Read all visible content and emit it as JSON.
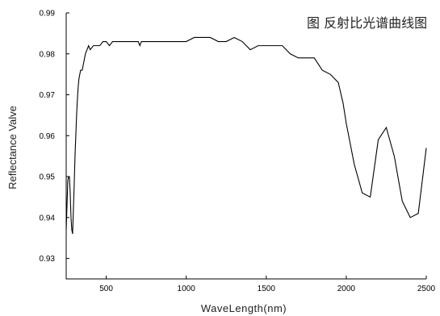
{
  "chart_data": {
    "type": "line",
    "title": "图 反射比光谱曲线图",
    "xlabel": "WaveLength(nm)",
    "ylabel": "Reflectance Valve",
    "xlim": [
      250,
      2500
    ],
    "ylim": [
      0.925,
      0.99
    ],
    "x_ticks": [
      500,
      1000,
      1500,
      2000,
      2500
    ],
    "y_ticks": [
      0.93,
      0.94,
      0.95,
      0.96,
      0.97,
      0.98,
      0.99
    ],
    "grid": false,
    "series": [
      {
        "x": [
          250,
          255,
          260,
          265,
          270,
          275,
          280,
          285,
          290,
          295,
          300,
          305,
          310,
          315,
          320,
          325,
          330,
          335,
          340,
          350,
          360,
          370,
          380,
          390,
          400,
          420,
          440,
          460,
          480,
          500,
          520,
          540,
          560,
          580,
          600,
          650,
          700,
          710,
          720,
          750,
          800,
          850,
          900,
          950,
          1000,
          1050,
          1100,
          1150,
          1200,
          1250,
          1300,
          1350,
          1400,
          1450,
          1500,
          1550,
          1600,
          1650,
          1700,
          1750,
          1800,
          1850,
          1900,
          1950,
          1980,
          2000,
          2050,
          2100,
          2150,
          2200,
          2250,
          2300,
          2350,
          2400,
          2450,
          2500
        ],
        "y": [
          0.937,
          0.943,
          0.949,
          0.95,
          0.95,
          0.946,
          0.94,
          0.937,
          0.936,
          0.942,
          0.948,
          0.955,
          0.96,
          0.965,
          0.969,
          0.972,
          0.974,
          0.975,
          0.976,
          0.976,
          0.978,
          0.98,
          0.981,
          0.982,
          0.981,
          0.982,
          0.982,
          0.982,
          0.983,
          0.983,
          0.982,
          0.983,
          0.983,
          0.983,
          0.983,
          0.983,
          0.983,
          0.982,
          0.983,
          0.983,
          0.983,
          0.983,
          0.983,
          0.983,
          0.983,
          0.984,
          0.984,
          0.984,
          0.983,
          0.983,
          0.984,
          0.983,
          0.981,
          0.982,
          0.982,
          0.982,
          0.982,
          0.98,
          0.979,
          0.979,
          0.979,
          0.976,
          0.975,
          0.973,
          0.968,
          0.963,
          0.953,
          0.946,
          0.945,
          0.959,
          0.962,
          0.955,
          0.944,
          0.94,
          0.941,
          0.957
        ]
      }
    ]
  }
}
